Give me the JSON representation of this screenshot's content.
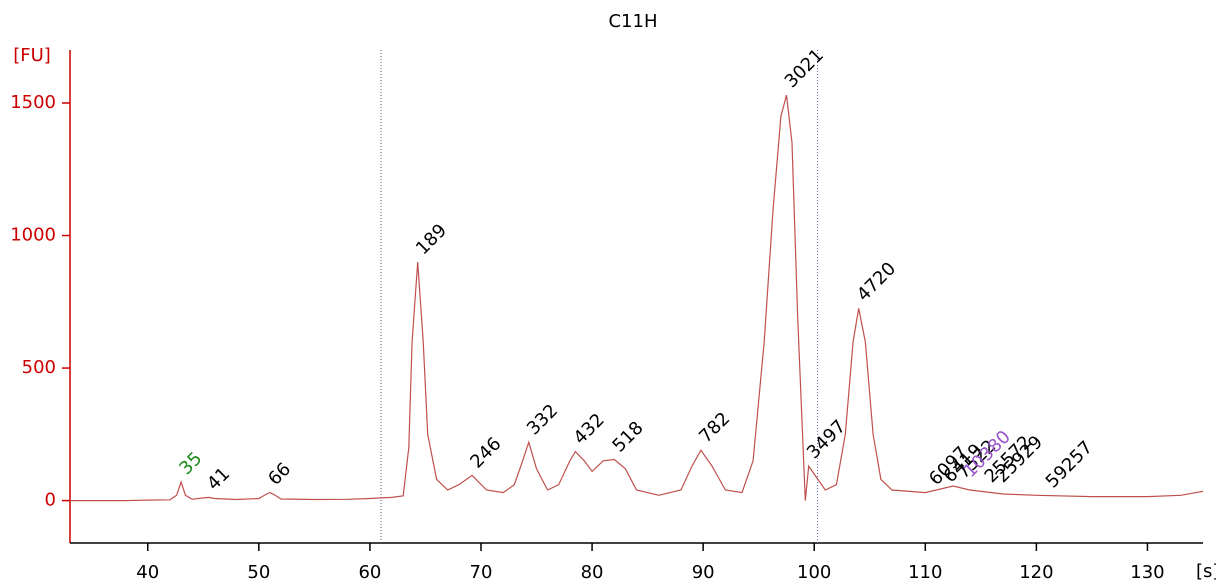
{
  "chart_data": {
    "type": "line",
    "title": "C11H",
    "y_label": "[FU]",
    "x_label": "[s]",
    "xlim": [
      33,
      135
    ],
    "ylim": [
      -160,
      1700
    ],
    "xticks": [
      40,
      50,
      60,
      70,
      80,
      90,
      100,
      110,
      120,
      130
    ],
    "yticks": [
      0,
      500,
      1000,
      1500
    ],
    "markers": {
      "x": [
        61,
        100.3
      ],
      "colors": [
        "#555577",
        "#6666cc"
      ]
    },
    "series": [
      {
        "name": "C11H",
        "color": "#c0504d",
        "x": [
          33,
          38,
          40,
          42,
          42.6,
          43,
          43.4,
          44,
          45,
          45.5,
          46,
          48,
          50,
          50.7,
          51,
          51.4,
          52,
          55,
          58,
          60,
          61,
          62,
          63,
          63.5,
          63.8,
          64.3,
          64.8,
          65.2,
          66,
          67,
          68,
          69.2,
          70.5,
          72,
          73,
          73.5,
          74.3,
          75,
          76,
          77,
          78,
          78.5,
          79.3,
          80,
          81,
          82,
          83,
          84,
          86,
          88,
          89,
          89.8,
          90.8,
          92,
          93.5,
          94.5,
          95.5,
          96.3,
          97,
          97.5,
          98,
          98.5,
          99,
          99.2,
          99.5,
          100,
          101,
          102,
          102.8,
          103.5,
          104,
          104.6,
          105.3,
          106,
          107,
          110,
          112.5,
          114,
          117,
          120,
          125,
          130,
          133,
          135
        ],
        "values": [
          0,
          0,
          2,
          3,
          20,
          70,
          20,
          5,
          10,
          12,
          8,
          4,
          8,
          25,
          30,
          22,
          6,
          4,
          5,
          8,
          10,
          12,
          18,
          200,
          600,
          900,
          600,
          250,
          80,
          40,
          60,
          95,
          40,
          30,
          60,
          120,
          220,
          120,
          40,
          60,
          150,
          185,
          150,
          110,
          150,
          155,
          120,
          40,
          20,
          40,
          130,
          190,
          130,
          40,
          30,
          150,
          600,
          1100,
          1450,
          1530,
          1350,
          700,
          200,
          0,
          130,
          100,
          40,
          60,
          250,
          600,
          725,
          600,
          250,
          80,
          40,
          30,
          55,
          40,
          25,
          20,
          15,
          15,
          20,
          35
        ]
      }
    ],
    "peaks": {
      "labels": [
        "35",
        "41",
        "66",
        "189",
        "246",
        "332",
        "432",
        "518",
        "782",
        "3021",
        "3497",
        "4720",
        "6097",
        "6419",
        "7522",
        "10380",
        "25572",
        "25929",
        "59257"
      ],
      "x": [
        43,
        45.5,
        51,
        64.3,
        69.2,
        74.3,
        78.5,
        82,
        89.8,
        97.5,
        99.5,
        104,
        110.5,
        111.8,
        113,
        113.6,
        115.5,
        116.5,
        121
      ],
      "y": [
        70,
        12,
        30,
        900,
        95,
        220,
        185,
        155,
        190,
        1530,
        130,
        725,
        30,
        40,
        55,
        60,
        40,
        40,
        20
      ],
      "colors": [
        "#1a8a1a",
        "#000000",
        "#000000",
        "#000000",
        "#000000",
        "#000000",
        "#000000",
        "#000000",
        "#000000",
        "#000000",
        "#000000",
        "#000000",
        "#000000",
        "#000000",
        "#000000",
        "#9955cc",
        "#000000",
        "#000000",
        "#000000"
      ]
    }
  }
}
